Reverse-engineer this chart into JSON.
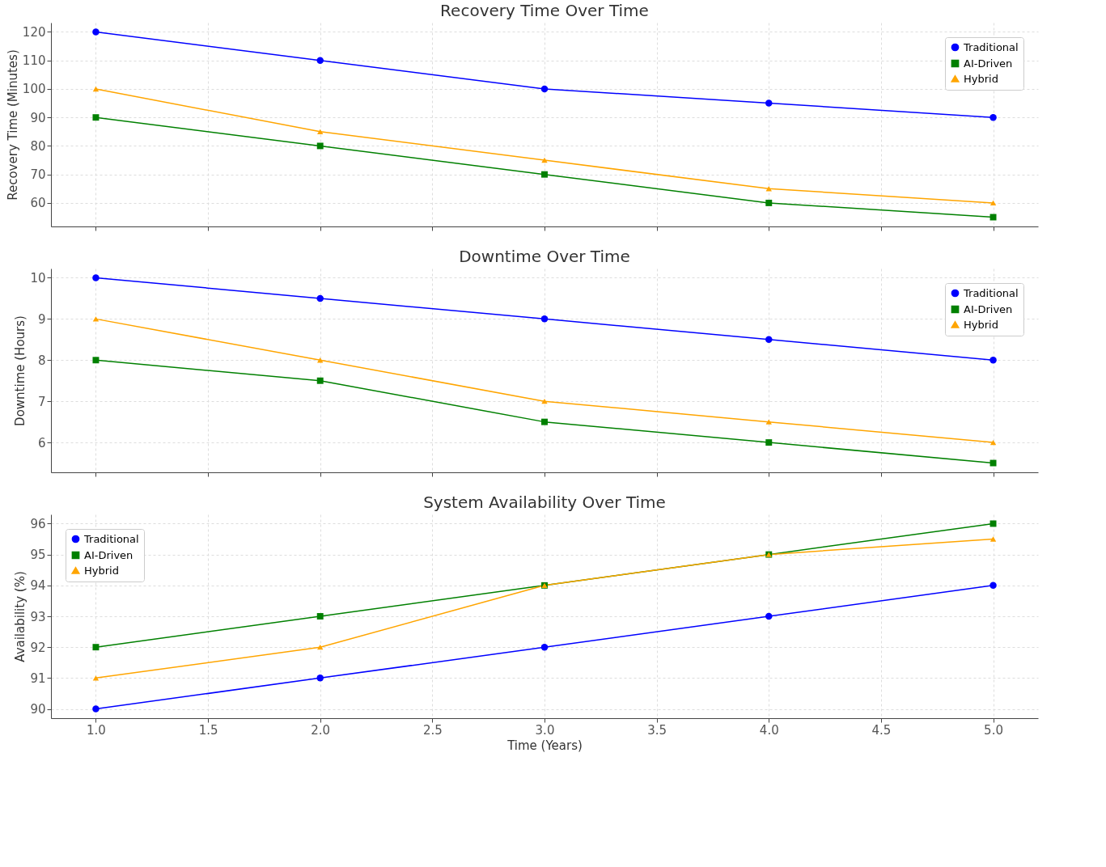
{
  "chart_data": [
    {
      "type": "line",
      "title": "Recovery Time Over Time",
      "ylabel": "Recovery Time (Minutes)",
      "x": [
        1,
        2,
        3,
        4,
        5
      ],
      "series": [
        {
          "name": "Traditional",
          "color": "#0000ff",
          "marker": "circle",
          "values": [
            120,
            110,
            100,
            95,
            90
          ]
        },
        {
          "name": "AI-Driven",
          "color": "#008000",
          "marker": "square",
          "values": [
            90,
            80,
            70,
            60,
            55
          ]
        },
        {
          "name": "Hybrid",
          "color": "#ffa500",
          "marker": "triangle",
          "values": [
            100,
            85,
            75,
            65,
            60
          ]
        }
      ],
      "xlim": [
        0.8,
        5.2
      ],
      "xticks": [
        1,
        1.5,
        2,
        2.5,
        3,
        3.5,
        4,
        4.5,
        5
      ],
      "ylim": [
        51.75,
        123.25
      ],
      "yticks": [
        60,
        70,
        80,
        90,
        100,
        110,
        120
      ],
      "tick_labels": "y",
      "grid": true,
      "legend": "top right",
      "line_style": "solid"
    },
    {
      "type": "line",
      "title": "Downtime Over Time",
      "ylabel": "Downtime (Hours)",
      "x": [
        1,
        2,
        3,
        4,
        5
      ],
      "series": [
        {
          "name": "Traditional",
          "color": "#0000ff",
          "marker": "circle",
          "values": [
            10,
            9.5,
            9,
            8.5,
            8
          ]
        },
        {
          "name": "AI-Driven",
          "color": "#008000",
          "marker": "square",
          "values": [
            8,
            7.5,
            6.5,
            6,
            5.5
          ]
        },
        {
          "name": "Hybrid",
          "color": "#ffa500",
          "marker": "triangle",
          "values": [
            9,
            8,
            7,
            6.5,
            6
          ]
        }
      ],
      "xlim": [
        0.8,
        5.2
      ],
      "xticks": [
        1,
        1.5,
        2,
        2.5,
        3,
        3.5,
        4,
        4.5,
        5
      ],
      "ylim": [
        5.275,
        10.225
      ],
      "yticks": [
        6,
        7,
        8,
        9,
        10
      ],
      "tick_labels": "y",
      "grid": true,
      "legend": "top right",
      "line_style": "solid"
    },
    {
      "type": "line",
      "title": "System Availability Over Time",
      "xlabel": "Time (Years)",
      "ylabel": "Availability (%)",
      "x": [
        1,
        2,
        3,
        4,
        5
      ],
      "series": [
        {
          "name": "Traditional",
          "color": "#0000ff",
          "marker": "circle",
          "values": [
            90,
            91,
            92,
            93,
            94
          ]
        },
        {
          "name": "AI-Driven",
          "color": "#008000",
          "marker": "square",
          "values": [
            92,
            93,
            94,
            95,
            96
          ]
        },
        {
          "name": "Hybrid",
          "color": "#ffa500",
          "marker": "triangle",
          "values": [
            91,
            92,
            94,
            95,
            95.5
          ]
        }
      ],
      "xlim": [
        0.8,
        5.2
      ],
      "xticks": [
        {
          "value": 1,
          "label": "1.0"
        },
        {
          "value": 1.5,
          "label": "1.5"
        },
        {
          "value": 2,
          "label": "2.0"
        },
        {
          "value": 2.5,
          "label": "2.5"
        },
        {
          "value": 3,
          "label": "3.0"
        },
        {
          "value": 3.5,
          "label": "3.5"
        },
        {
          "value": 4,
          "label": "4.0"
        },
        {
          "value": 4.5,
          "label": "4.5"
        },
        {
          "value": 5,
          "label": "5.0"
        }
      ],
      "ylim": [
        89.7,
        96.3
      ],
      "yticks": [
        90,
        91,
        92,
        93,
        94,
        95,
        96
      ],
      "grid": true,
      "legend": "top left",
      "line_style": "solid"
    }
  ]
}
